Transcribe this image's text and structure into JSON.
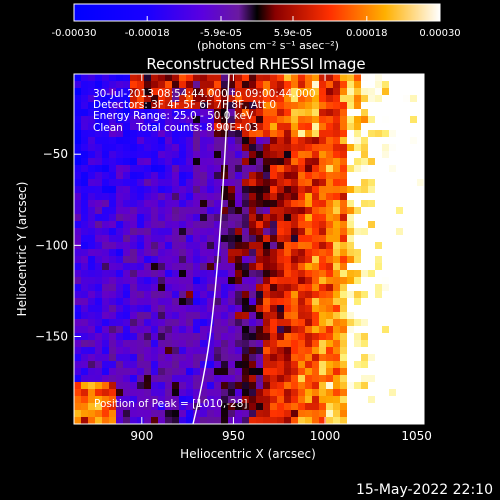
{
  "colorbar": {
    "tick_labels": [
      "-0.00030",
      "-0.00018",
      "-5.9e-05",
      "5.9e-05",
      "0.00018",
      "0.00030"
    ],
    "tick_values": [
      -0.0003,
      -0.00018,
      -5.9e-05,
      5.9e-05,
      0.00018,
      0.0003
    ],
    "range": [
      -0.0003,
      0.0003
    ],
    "unit_label": "(photons cm⁻² s⁻¹ asec⁻²)"
  },
  "chart_data": {
    "type": "heatmap",
    "title": "Reconstructed RHESSI Image",
    "xlabel": "Heliocentric X (arcsec)",
    "ylabel": "Heliocentric Y (arcsec)",
    "xlim": [
      863,
      1054
    ],
    "ylim": [
      -198,
      -6
    ],
    "xticks": [
      900,
      950,
      1000,
      1050
    ],
    "yticks": [
      -50,
      -100,
      -150
    ],
    "info_lines": [
      "30-Jul-2013 08:54:44.000 to 09:00:44.000",
      "Detectors: 3F 4F 5F 6F 7F 8F, Att 0",
      "Energy Range: 25.0 - 50.0 keV",
      "Clean    Total counts: 8.90E+03"
    ],
    "peak_text": "Position of Peak = [1010,-28]",
    "peak": [
      1010,
      -28
    ],
    "grid": false,
    "colormap": "blue-purple-red-yellow-white"
  },
  "footer": {
    "timestamp": "15-May-2022 22:10"
  }
}
